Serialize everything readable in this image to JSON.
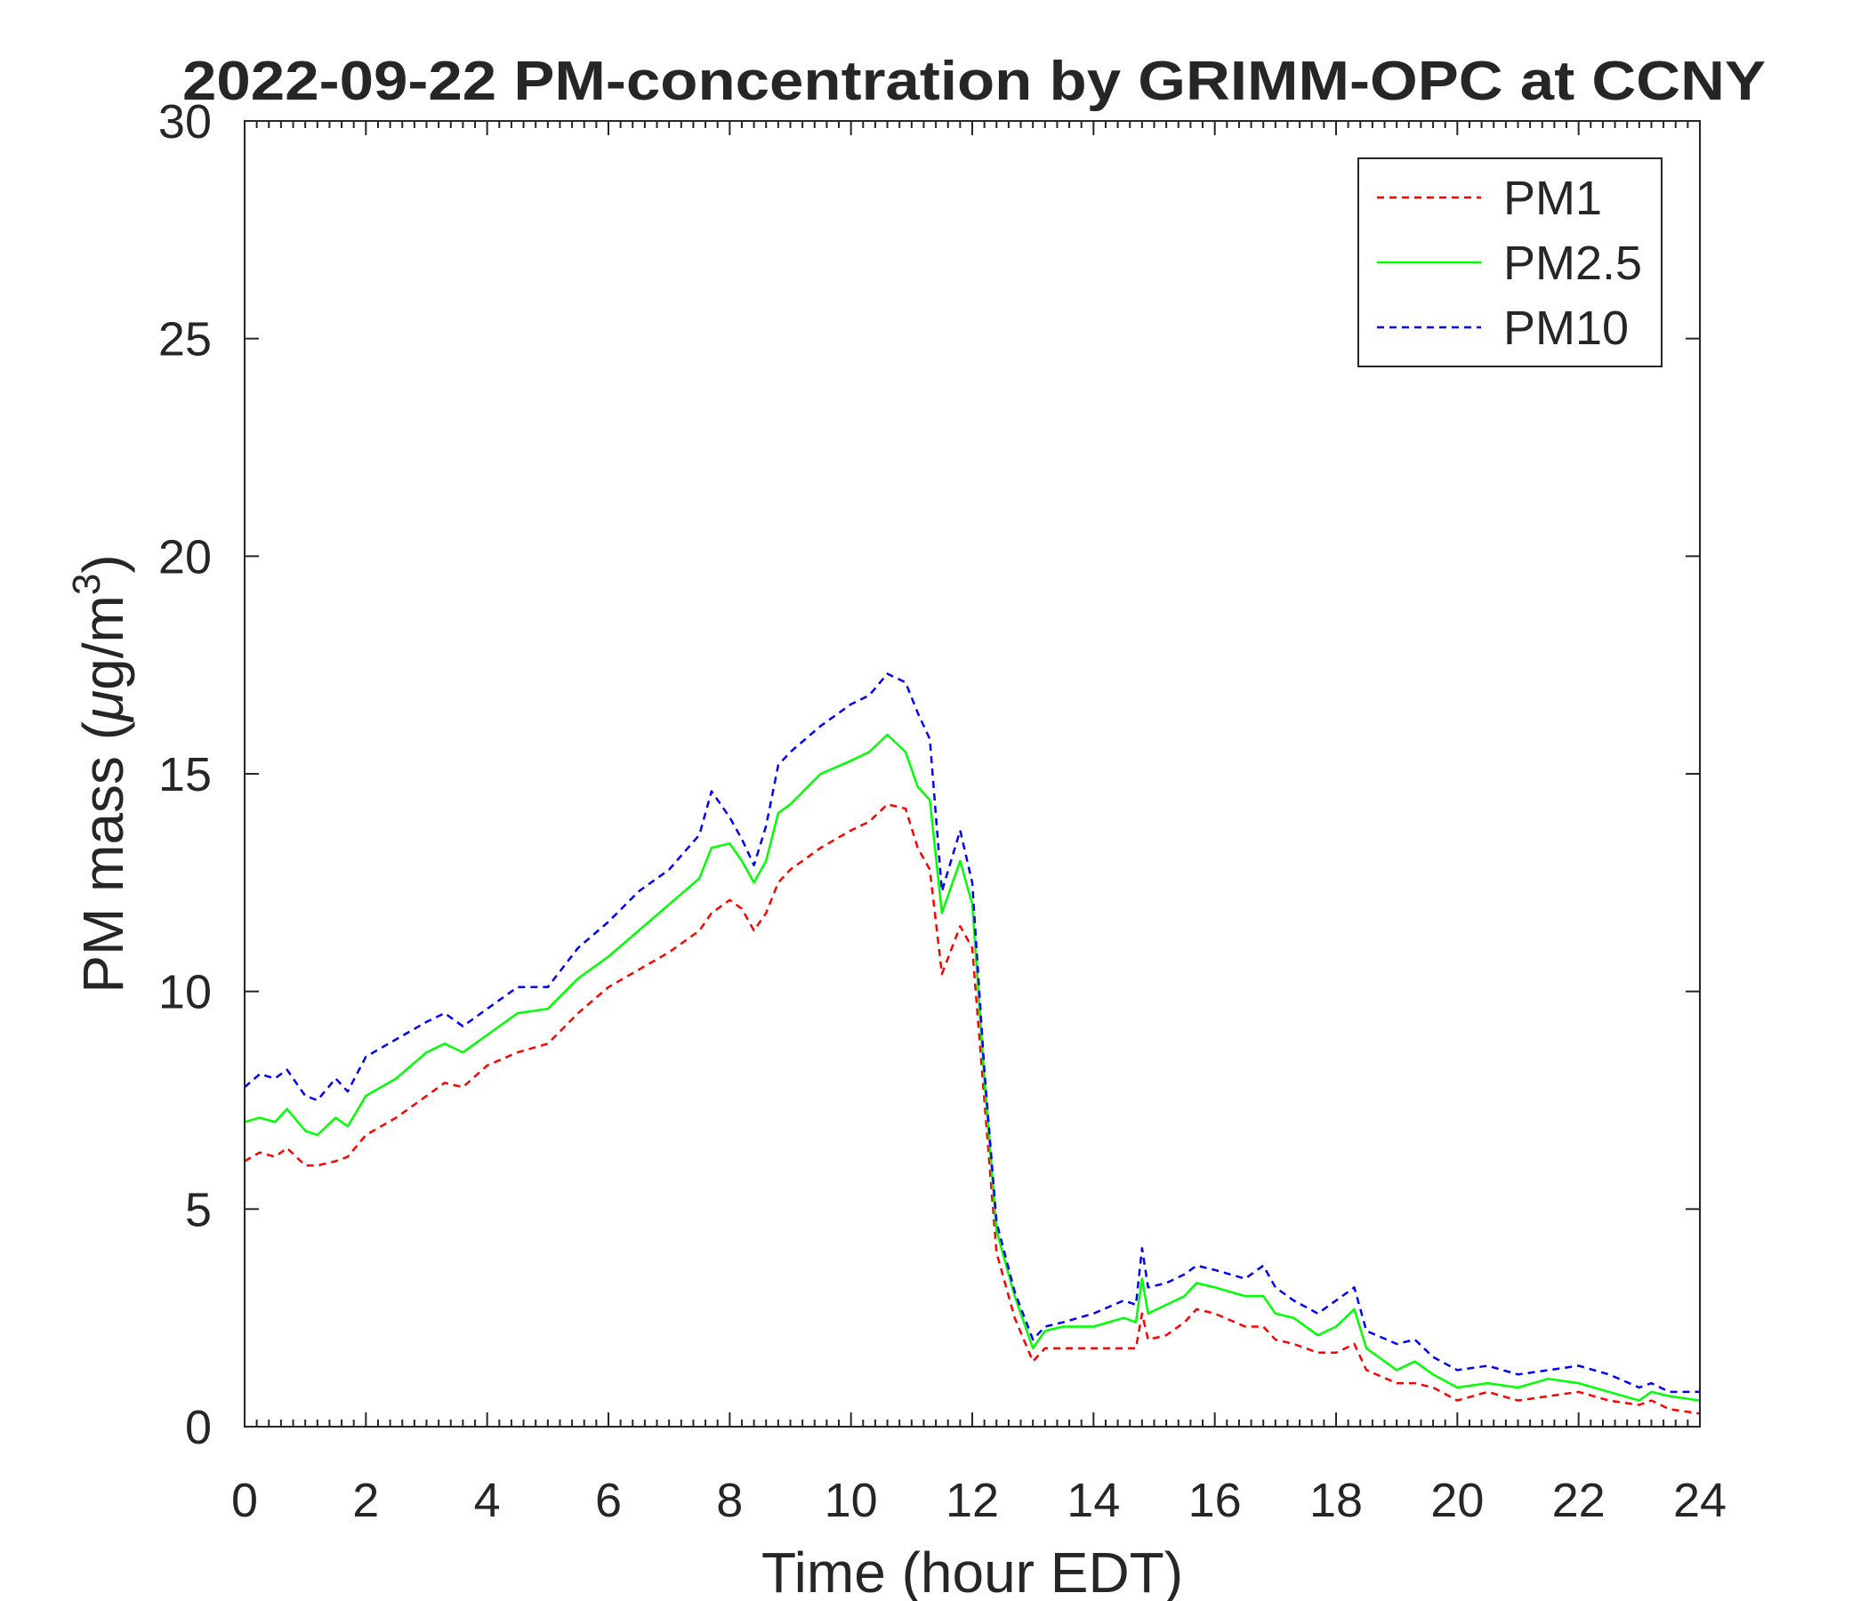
{
  "chart_data": {
    "type": "line",
    "title": "2022-09-22 PM-concentration by GRIMM-OPC at CCNY",
    "xlabel": "Time (hour EDT)",
    "ylabel_main": "PM mass (",
    "ylabel_mu": "μ",
    "ylabel_unit": "g/m",
    "ylabel_sup": "3",
    "ylabel_close": ")",
    "xlim": [
      0,
      24
    ],
    "ylim": [
      0,
      30
    ],
    "xticks": [
      "0",
      "2",
      "4",
      "6",
      "8",
      "10",
      "12",
      "14",
      "16",
      "18",
      "20",
      "22",
      "24"
    ],
    "yticks": [
      "0",
      "5",
      "10",
      "15",
      "20",
      "25",
      "30"
    ],
    "grid": false,
    "legend_position": "top-right",
    "x": [
      0,
      0.25,
      0.5,
      0.7,
      1.0,
      1.2,
      1.5,
      1.7,
      2.0,
      2.5,
      3.0,
      3.3,
      3.6,
      4.0,
      4.5,
      5.0,
      5.5,
      6.0,
      6.5,
      7.0,
      7.5,
      7.7,
      8.0,
      8.2,
      8.4,
      8.6,
      8.8,
      9.0,
      9.5,
      10.0,
      10.3,
      10.6,
      10.9,
      11.1,
      11.3,
      11.5,
      11.8,
      12.0,
      12.2,
      12.4,
      12.7,
      13.0,
      13.2,
      13.5,
      14.0,
      14.5,
      14.7,
      14.8,
      14.9,
      15.2,
      15.5,
      15.7,
      16.0,
      16.5,
      16.8,
      17.0,
      17.3,
      17.7,
      18.0,
      18.3,
      18.5,
      19.0,
      19.3,
      19.6,
      20.0,
      20.5,
      21.0,
      21.5,
      22.0,
      22.5,
      23.0,
      23.2,
      23.5,
      24
    ],
    "series": [
      {
        "name": "PM1",
        "color": "#ff0000",
        "dash": "dashed",
        "values": [
          6.1,
          6.3,
          6.2,
          6.4,
          6.0,
          6.0,
          6.1,
          6.2,
          6.7,
          7.1,
          7.6,
          7.9,
          7.8,
          8.3,
          8.6,
          8.8,
          9.5,
          10.1,
          10.5,
          10.9,
          11.4,
          11.8,
          12.1,
          11.9,
          11.4,
          11.8,
          12.5,
          12.8,
          13.3,
          13.7,
          13.9,
          14.3,
          14.2,
          13.3,
          12.8,
          10.4,
          11.5,
          11.0,
          7.5,
          4.0,
          2.5,
          1.5,
          1.8,
          1.8,
          1.8,
          1.8,
          1.8,
          2.6,
          2.0,
          2.1,
          2.4,
          2.7,
          2.6,
          2.3,
          2.3,
          2.0,
          1.9,
          1.7,
          1.7,
          1.9,
          1.3,
          1.0,
          1.0,
          0.9,
          0.6,
          0.8,
          0.6,
          0.7,
          0.8,
          0.6,
          0.5,
          0.6,
          0.4,
          0.3
        ]
      },
      {
        "name": "PM2.5",
        "color": "#00ff00",
        "dash": "solid",
        "values": [
          7.0,
          7.1,
          7.0,
          7.3,
          6.8,
          6.7,
          7.1,
          6.9,
          7.6,
          8.0,
          8.6,
          8.8,
          8.6,
          9.0,
          9.5,
          9.6,
          10.3,
          10.8,
          11.4,
          12.0,
          12.6,
          13.3,
          13.4,
          13.0,
          12.5,
          13.0,
          14.1,
          14.3,
          15.0,
          15.3,
          15.5,
          15.9,
          15.5,
          14.7,
          14.4,
          11.8,
          13.0,
          12.0,
          8.0,
          4.5,
          3.0,
          1.8,
          2.2,
          2.3,
          2.3,
          2.5,
          2.4,
          3.4,
          2.6,
          2.8,
          3.0,
          3.3,
          3.2,
          3.0,
          3.0,
          2.6,
          2.5,
          2.1,
          2.3,
          2.7,
          1.8,
          1.3,
          1.5,
          1.2,
          0.9,
          1.0,
          0.9,
          1.1,
          1.0,
          0.8,
          0.6,
          0.8,
          0.7,
          0.6
        ]
      },
      {
        "name": "PM10",
        "color": "#0000ff",
        "dash": "dashed",
        "values": [
          7.8,
          8.1,
          8.0,
          8.2,
          7.6,
          7.5,
          8.0,
          7.7,
          8.5,
          8.9,
          9.3,
          9.5,
          9.2,
          9.6,
          10.1,
          10.1,
          11.0,
          11.6,
          12.3,
          12.8,
          13.6,
          14.6,
          14.0,
          13.5,
          12.9,
          13.8,
          15.2,
          15.5,
          16.1,
          16.6,
          16.8,
          17.3,
          17.1,
          16.4,
          15.8,
          12.3,
          13.7,
          12.5,
          8.2,
          4.7,
          3.1,
          2.0,
          2.3,
          2.4,
          2.6,
          2.9,
          2.8,
          4.1,
          3.2,
          3.3,
          3.5,
          3.7,
          3.6,
          3.4,
          3.7,
          3.2,
          2.9,
          2.6,
          2.9,
          3.2,
          2.2,
          1.9,
          2.0,
          1.6,
          1.3,
          1.4,
          1.2,
          1.3,
          1.4,
          1.2,
          0.9,
          1.0,
          0.8,
          0.8
        ]
      }
    ]
  }
}
